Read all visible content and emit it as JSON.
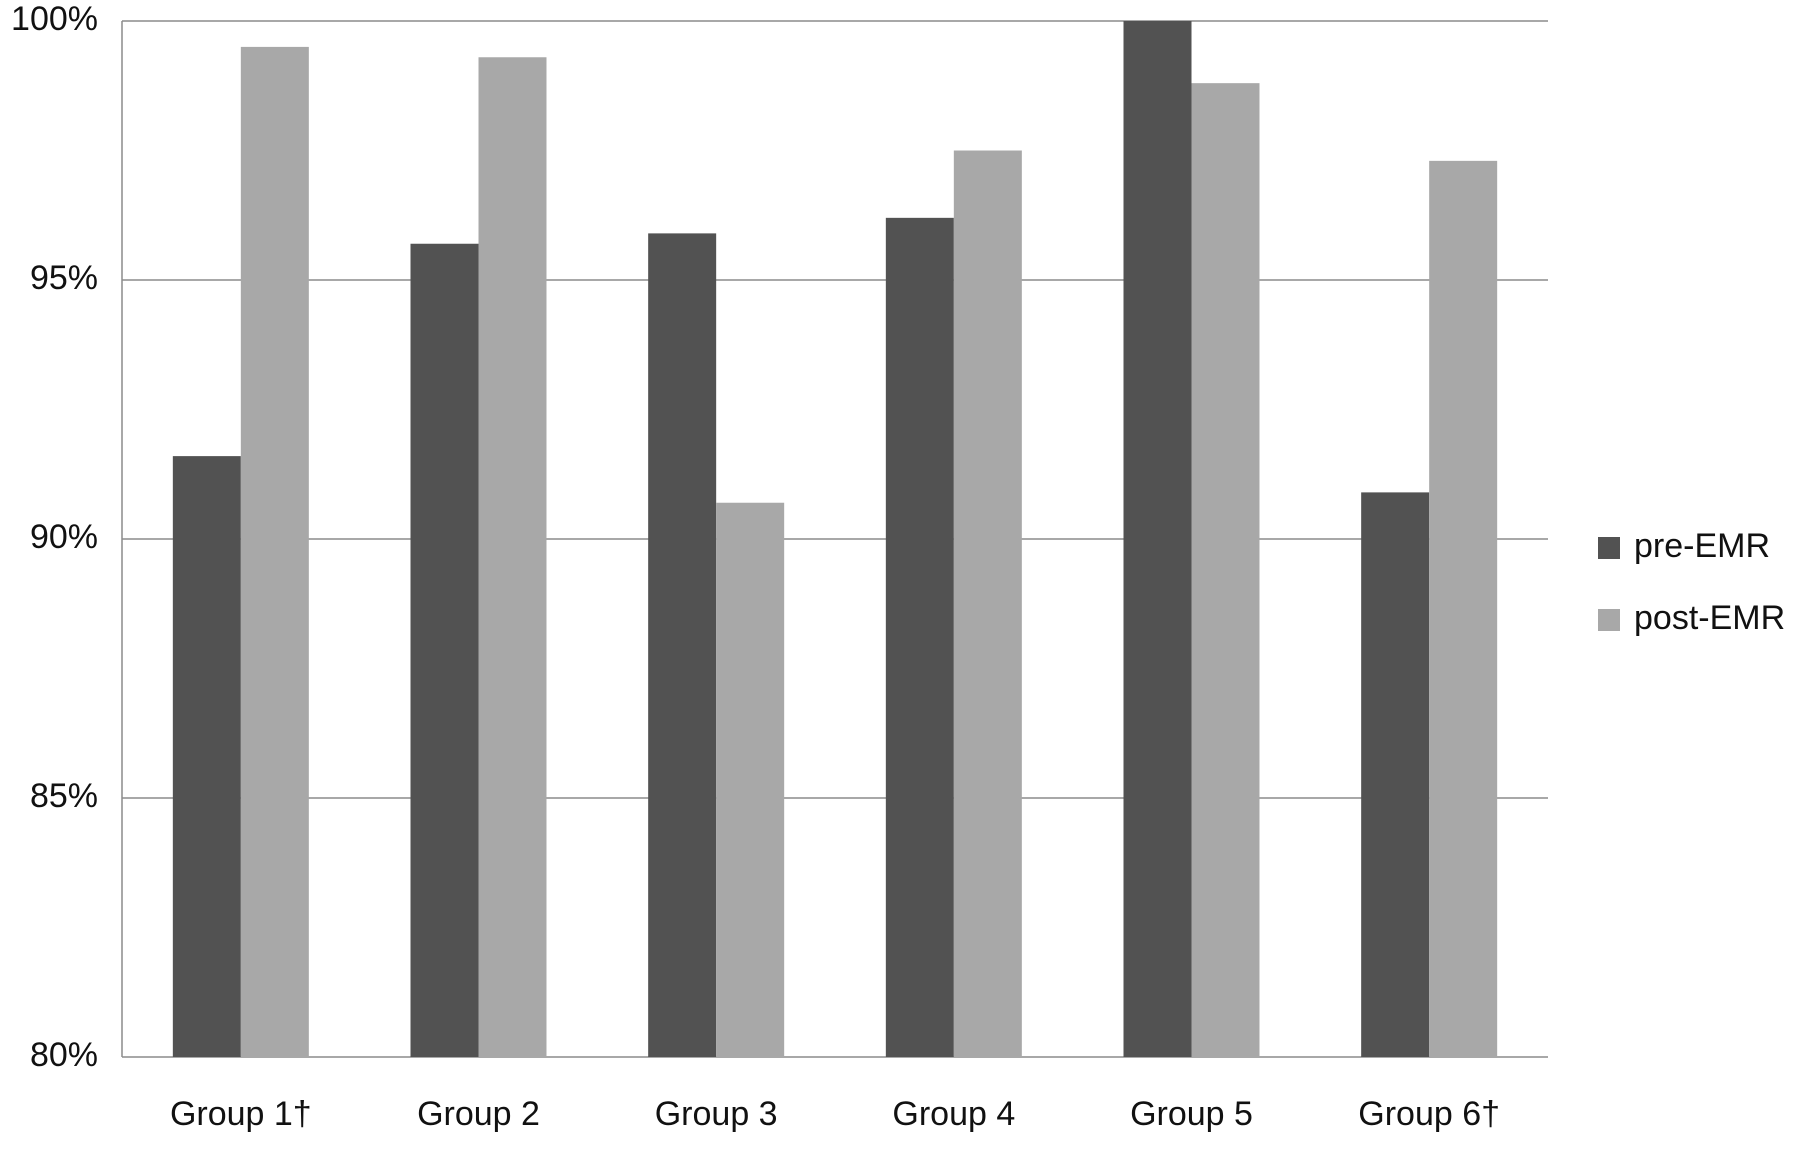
{
  "chart_data": {
    "type": "bar",
    "title": "",
    "xlabel": "",
    "ylabel": "",
    "categories": [
      "Group 1†",
      "Group 2",
      "Group 3",
      "Group 4",
      "Group 5",
      "Group 6†"
    ],
    "series": [
      {
        "name": "pre-EMR",
        "color": "#525252",
        "values": [
          91.6,
          95.7,
          95.9,
          96.2,
          100.0,
          90.9
        ]
      },
      {
        "name": "post-EMR",
        "color": "#a8a8a8",
        "values": [
          99.5,
          99.3,
          90.7,
          97.5,
          98.8,
          97.3
        ]
      }
    ],
    "ylim": [
      80,
      100
    ],
    "yticks": [
      80,
      85,
      90,
      95,
      100
    ],
    "ytick_labels": [
      "80%",
      "85%",
      "90%",
      "95%",
      "100%"
    ],
    "grid": true,
    "legend_position": "right"
  }
}
